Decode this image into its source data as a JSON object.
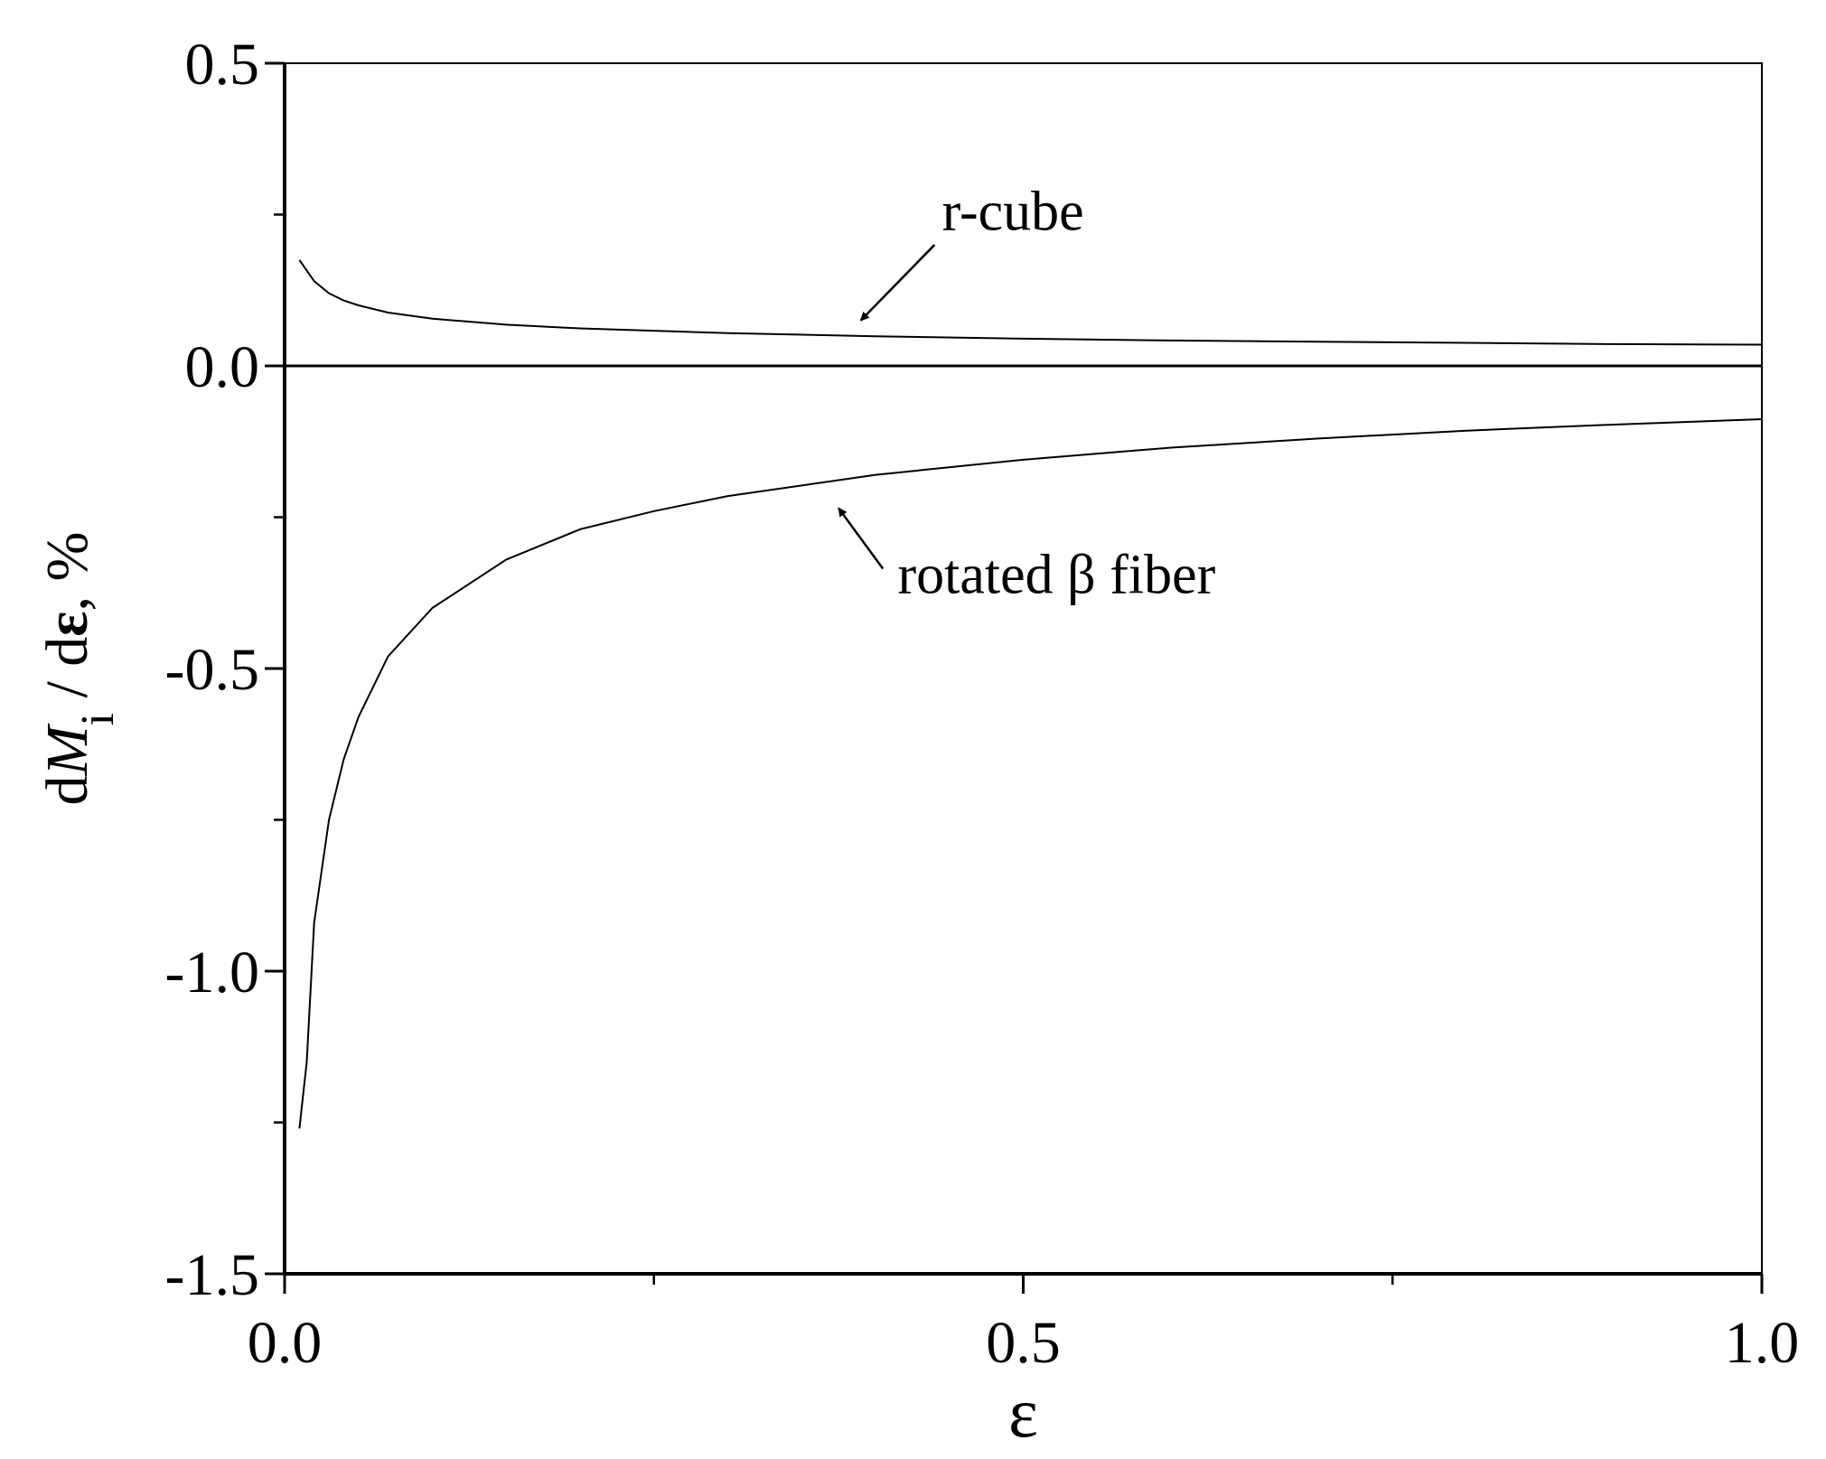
{
  "chart_data": {
    "type": "line",
    "title": "",
    "xlabel": "ε",
    "ylabel": {
      "parts": [
        "d",
        "M",
        "i",
        " / d",
        "ε",
        ", %"
      ]
    },
    "xlim": [
      0.0,
      1.0
    ],
    "ylim": [
      -1.5,
      0.5
    ],
    "xticks": [
      {
        "value": 0.0,
        "label": "0.0"
      },
      {
        "value": 0.5,
        "label": "0.5"
      },
      {
        "value": 1.0,
        "label": "1.0"
      }
    ],
    "xminor": [
      0.25,
      0.75
    ],
    "yticks": [
      {
        "value": 0.5,
        "label": "0.5"
      },
      {
        "value": 0.0,
        "label": "0.0"
      },
      {
        "value": -0.5,
        "label": "-0.5"
      },
      {
        "value": -1.0,
        "label": "-1.0"
      },
      {
        "value": -1.5,
        "label": "-1.5"
      }
    ],
    "yminor": [
      0.25,
      -0.25,
      -0.75,
      -1.25
    ],
    "reference_lines": [
      {
        "axis": "y",
        "value": 0.0
      }
    ],
    "grid": false,
    "legend": "none",
    "series": [
      {
        "name": "r-cube",
        "x": [
          0.01,
          0.02,
          0.03,
          0.04,
          0.05,
          0.07,
          0.1,
          0.15,
          0.2,
          0.3,
          0.4,
          0.5,
          0.6,
          0.7,
          0.8,
          0.9,
          1.0
        ],
        "y": [
          0.175,
          0.14,
          0.12,
          0.108,
          0.1,
          0.088,
          0.078,
          0.068,
          0.062,
          0.054,
          0.049,
          0.045,
          0.042,
          0.04,
          0.038,
          0.036,
          0.035
        ]
      },
      {
        "name": "rotated β fiber",
        "x": [
          0.01,
          0.015,
          0.02,
          0.03,
          0.04,
          0.05,
          0.07,
          0.1,
          0.15,
          0.2,
          0.25,
          0.3,
          0.4,
          0.5,
          0.6,
          0.7,
          0.8,
          0.9,
          1.0
        ],
        "y": [
          -1.26,
          -1.15,
          -0.92,
          -0.75,
          -0.65,
          -0.58,
          -0.48,
          -0.4,
          -0.32,
          -0.27,
          -0.24,
          -0.215,
          -0.18,
          -0.155,
          -0.135,
          -0.12,
          -0.107,
          -0.097,
          -0.088
        ]
      }
    ],
    "annotations": [
      {
        "text": "r-cube",
        "series": "r-cube",
        "text_at": [
          0.445,
          0.225
        ],
        "arrow_from": [
          0.44,
          0.2
        ],
        "arrow_to": [
          0.39,
          0.075
        ]
      },
      {
        "text": "rotated β fiber",
        "series": "rotated β fiber",
        "text_at": [
          0.415,
          -0.375
        ],
        "arrow_from": [
          0.405,
          -0.335
        ],
        "arrow_to": [
          0.375,
          -0.235
        ]
      }
    ],
    "colors": {
      "line": "#000000",
      "background": "#ffffff"
    }
  }
}
